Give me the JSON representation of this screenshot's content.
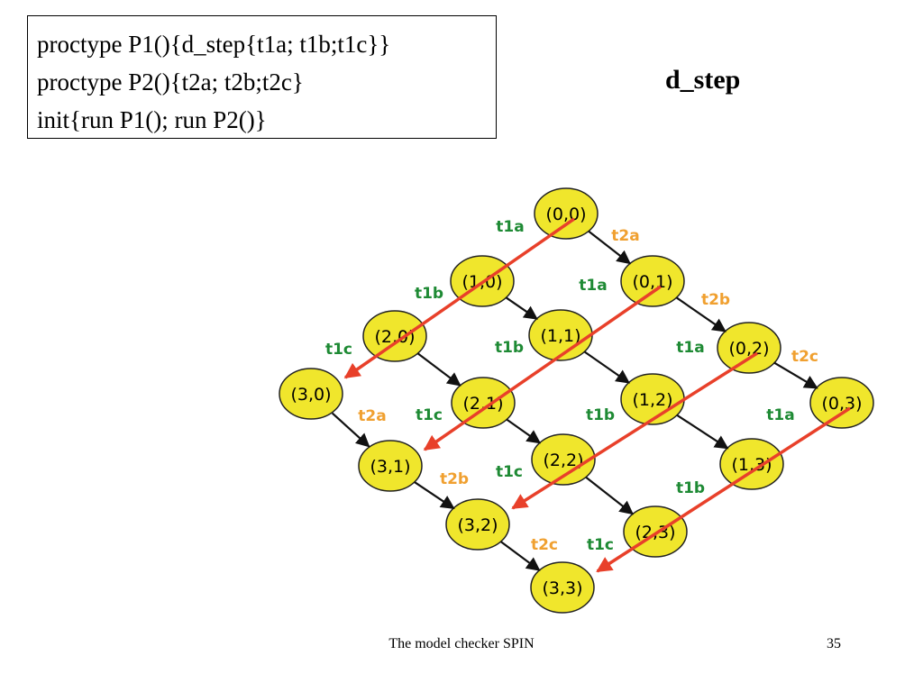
{
  "code": {
    "lines": [
      "proctype P1(){d_step{t1a; t1b;t1c}}",
      "proctype P2(){t2a; t2b;t2c}",
      "init{run P1(); run P2()}"
    ]
  },
  "title": "d_step",
  "colors": {
    "node_fill": "#f0e62c",
    "node_stroke": "#222222",
    "p1_step": "#e8402a",
    "p2_edge": "#111111",
    "p1_label": "#1e8a34",
    "p2_label": "#f0a030"
  },
  "diagram": {
    "states": [
      {
        "id": "s00",
        "label": "(0,0)"
      },
      {
        "id": "s01",
        "label": "(0,1)"
      },
      {
        "id": "s02",
        "label": "(0,2)"
      },
      {
        "id": "s03",
        "label": "(0,3)"
      },
      {
        "id": "s10",
        "label": "(1,0)"
      },
      {
        "id": "s11",
        "label": "(1,1)"
      },
      {
        "id": "s12",
        "label": "(1,2)"
      },
      {
        "id": "s13",
        "label": "(1,3)"
      },
      {
        "id": "s20",
        "label": "(2,0)"
      },
      {
        "id": "s21",
        "label": "(2,1)"
      },
      {
        "id": "s22",
        "label": "(2,2)"
      },
      {
        "id": "s23",
        "label": "(2,3)"
      },
      {
        "id": "s30",
        "label": "(3,0)"
      },
      {
        "id": "s31",
        "label": "(3,1)"
      },
      {
        "id": "s32",
        "label": "(3,2)"
      },
      {
        "id": "s33",
        "label": "(3,3)"
      }
    ],
    "p2_transitions": [
      {
        "from": "s00",
        "to": "s01",
        "label": "t2a"
      },
      {
        "from": "s01",
        "to": "s02",
        "label": "t2b"
      },
      {
        "from": "s02",
        "to": "s03",
        "label": "t2c"
      },
      {
        "from": "s30",
        "to": "s31",
        "label": "t2a"
      },
      {
        "from": "s31",
        "to": "s32",
        "label": "t2b"
      },
      {
        "from": "s32",
        "to": "s33",
        "label": "t2c"
      }
    ],
    "p1_atomic_steps": [
      {
        "from": "s00",
        "to": "s30"
      },
      {
        "from": "s01",
        "to": "s31"
      },
      {
        "from": "s02",
        "to": "s32"
      },
      {
        "from": "s03",
        "to": "s33"
      }
    ],
    "p1_labels": [
      {
        "label": "t1a"
      },
      {
        "label": "t1b"
      },
      {
        "label": "t1c"
      },
      {
        "label": "t1a"
      },
      {
        "label": "t1b"
      },
      {
        "label": "t1c"
      },
      {
        "label": "t1a"
      },
      {
        "label": "t1b"
      },
      {
        "label": "t1c"
      },
      {
        "label": "t1a"
      },
      {
        "label": "t1b"
      },
      {
        "label": "t1c"
      }
    ]
  },
  "footer": {
    "text": "The model checker SPIN",
    "page": "35"
  }
}
